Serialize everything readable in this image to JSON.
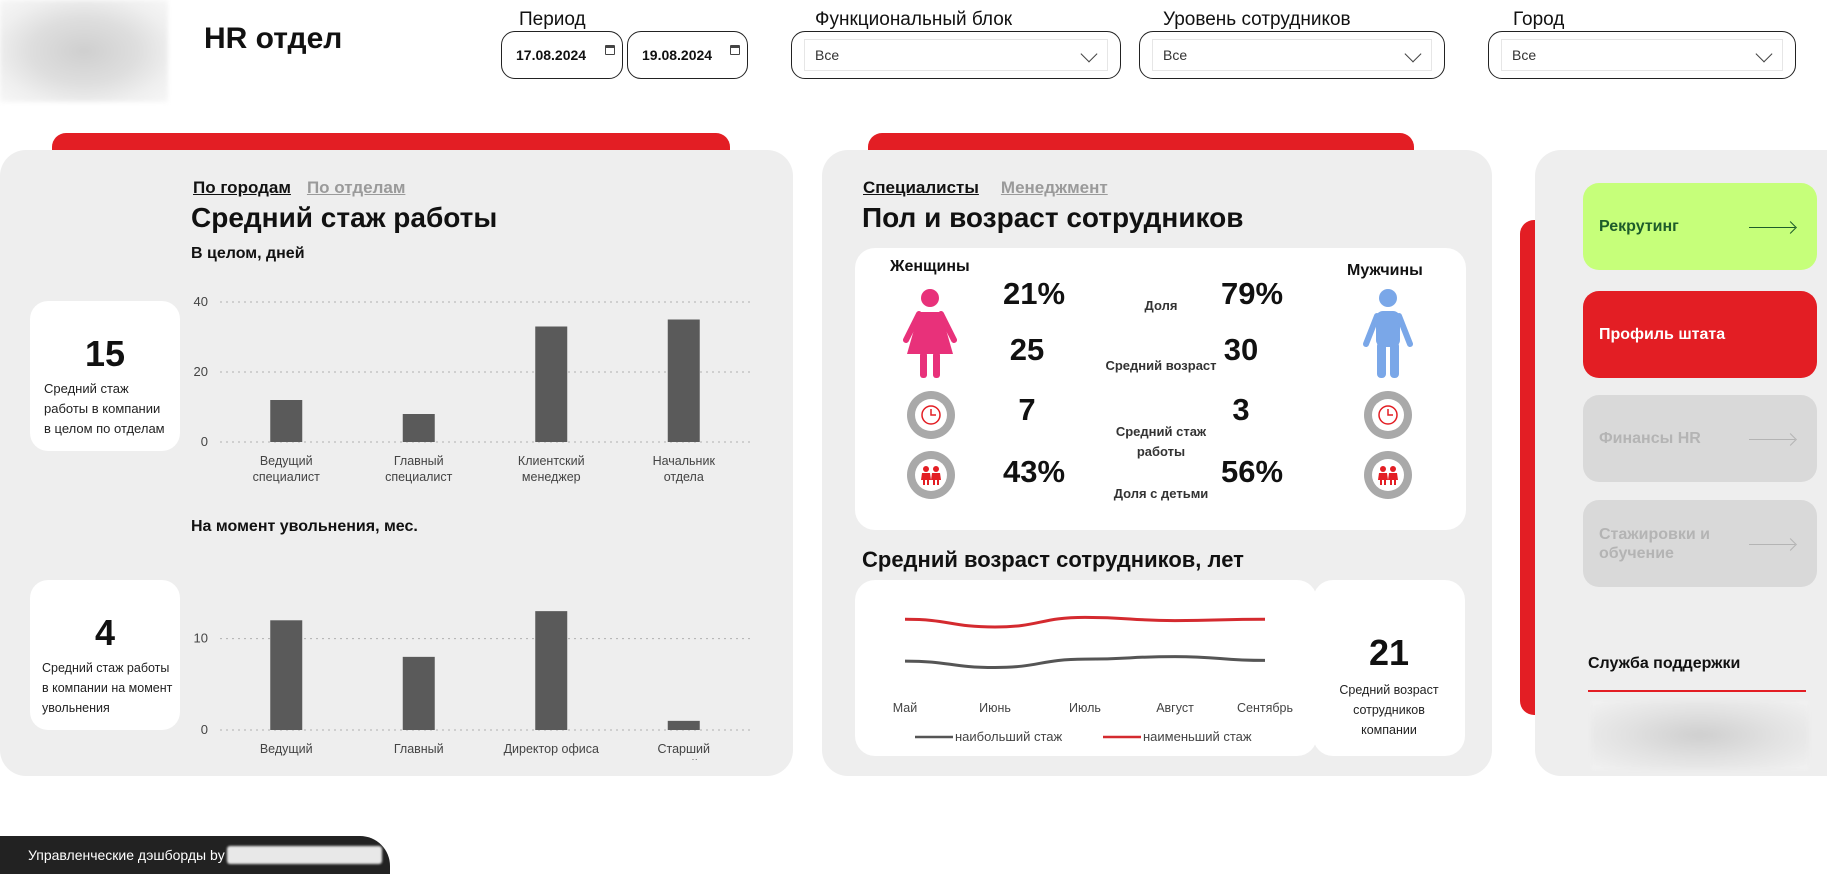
{
  "header": {
    "title": "HR отдел",
    "filters": {
      "period_label": "Период",
      "date_from": "17.08.2024",
      "date_to": "19.08.2024",
      "block_label": "Функциональный блок",
      "block_value": "Все",
      "level_label": "Уровень сотрудников",
      "level_value": "Все",
      "city_label": "Город",
      "city_value": "Все"
    }
  },
  "tenure": {
    "tabs": [
      "По городам",
      "По отделам"
    ],
    "title": "Средний стаж работы",
    "overall_subtitle": "В целом, дней",
    "overall_kpi": {
      "value": "15",
      "caption": [
        "Средний стаж",
        "работы в компании",
        "в целом по отделам"
      ]
    },
    "dismissal_subtitle": "На момент увольнения, мес.",
    "dismissal_kpi": {
      "value": "4",
      "caption": [
        "Средний стаж работы",
        "в компании на момент",
        "увольнения"
      ]
    }
  },
  "demographics": {
    "tabs": [
      "Специалисты",
      "Менеджмент"
    ],
    "title": "Пол и возраст сотрудников",
    "women_label": "Женщины",
    "men_label": "Мужчины",
    "rows": [
      {
        "label": "Доля",
        "women": "21%",
        "men": "79%"
      },
      {
        "label": "Средний возраст",
        "women": "25",
        "men": "30"
      },
      {
        "label": "Средний стаж работы",
        "women": "7",
        "men": "3"
      },
      {
        "label": "Доля с детьми",
        "women": "43%",
        "men": "56%"
      }
    ],
    "age_title": "Средний возраст сотрудников, лет",
    "age_kpi": {
      "value": "21",
      "caption": [
        "Средний возраст",
        "сотрудников",
        "компании"
      ]
    }
  },
  "nav": {
    "items": [
      {
        "label": "Рекрутинг",
        "state": "link"
      },
      {
        "label": "Профиль штата",
        "state": "active"
      },
      {
        "label": "Финансы HR",
        "state": "disabled"
      },
      {
        "label": "Стажировки и обучение",
        "state": "disabled"
      }
    ],
    "support_label": "Служба поддержки"
  },
  "footer": {
    "text": "Управленческие дэшборды by"
  },
  "colors": {
    "accent_red": "#e31e24",
    "recruit_green": "#c6ff7a",
    "bar_gray": "#5a5a5a",
    "female_pink": "#e8317a",
    "male_blue": "#7aa7e8"
  },
  "chart_data": [
    {
      "type": "bar",
      "categories": [
        [
          "Ведущий",
          "специалист"
        ],
        [
          "Главный",
          "специалист"
        ],
        [
          "Клиентский",
          "менеджер"
        ],
        [
          "Начальник",
          "отдела"
        ]
      ],
      "values": [
        12,
        8,
        33,
        35
      ],
      "yticks": [
        0,
        20,
        40
      ],
      "ylim": [
        0,
        40
      ],
      "grid": true
    },
    {
      "type": "bar",
      "categories": [
        [
          "Ведущий",
          "специалист"
        ],
        [
          "Главный",
          "специалист"
        ],
        [
          "Директор офиса"
        ],
        [
          "Старший",
          "клиентский мен..."
        ]
      ],
      "values": [
        12,
        8,
        13,
        1
      ],
      "yticks": [
        0,
        10
      ],
      "ylim": [
        0,
        14
      ],
      "grid": true
    },
    {
      "type": "line",
      "x": [
        "Май",
        "Июнь",
        "Июль",
        "Август",
        "Сентябрь"
      ],
      "series": [
        {
          "name": "наибольший стаж",
          "values": [
            4.5,
            3.5,
            4.8,
            5.2,
            4.6
          ],
          "color": "#555555"
        },
        {
          "name": "наименьший стаж",
          "values": [
            11,
            9.8,
            11.3,
            10.8,
            11.0
          ],
          "color": "#d42a2f"
        }
      ],
      "ylim": [
        0,
        14
      ],
      "legend": "bottom"
    }
  ]
}
